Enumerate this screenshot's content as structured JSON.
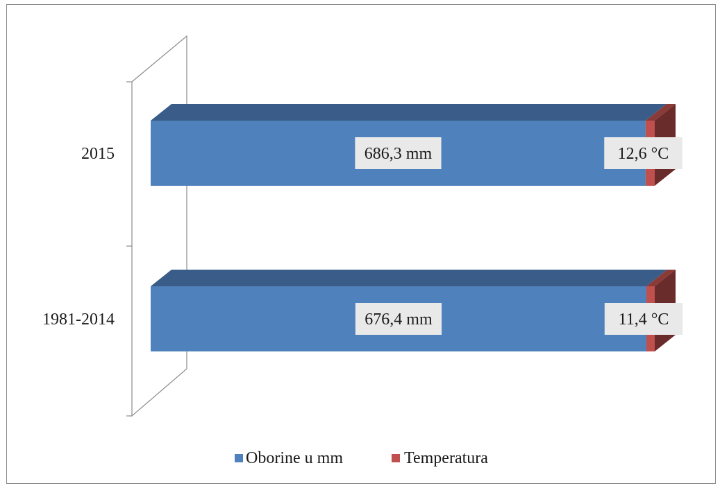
{
  "chart_data": {
    "type": "bar",
    "orientation": "horizontal",
    "stacked": true,
    "three_d": true,
    "categories": [
      "2015",
      "1981-2014"
    ],
    "series": [
      {
        "name": "Oborine u mm",
        "values": [
          686.3,
          676.4
        ],
        "labels": [
          "686,3  mm",
          "676,4  mm"
        ],
        "color": "#4f81bd"
      },
      {
        "name": "Temperatura",
        "values": [
          12.6,
          11.4
        ],
        "labels": [
          "12,6  °C",
          "11,4  °C"
        ],
        "color": "#c0504d"
      }
    ],
    "grid": false,
    "legend": "bottom"
  }
}
